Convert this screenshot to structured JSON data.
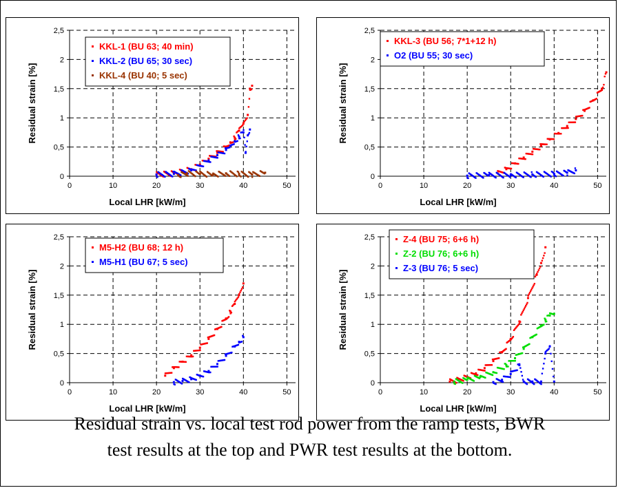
{
  "caption": {
    "line1": "Residual strain vs. local test rod power from the ramp tests, BWR",
    "line2": "test results at the top and PWR test results at the bottom."
  },
  "chart_data": [
    {
      "type": "scatter",
      "xlabel": "Local LHR [kW/m]",
      "ylabel": "Residual strain [%]",
      "xlim": [
        0,
        52
      ],
      "ylim": [
        0,
        2.5
      ],
      "xticks": [
        "0",
        "10",
        "20",
        "30",
        "40",
        "50"
      ],
      "yticks": [
        "0",
        "0,5",
        "1",
        "1,5",
        "2",
        "2,5"
      ],
      "grid": true,
      "legend": "top-left",
      "series": [
        {
          "name": "KKL-1 (BU 63; 40 min)",
          "color": "#ff0000",
          "x": [
            20,
            24,
            28,
            30,
            32,
            34,
            36,
            37,
            38,
            39,
            40,
            41,
            41.5,
            42
          ],
          "y": [
            0.03,
            0.05,
            0.12,
            0.2,
            0.3,
            0.4,
            0.5,
            0.58,
            0.66,
            0.78,
            0.9,
            1.05,
            1.5,
            1.55
          ]
        },
        {
          "name": "KKL-2 (BU 65; 30 sec)",
          "color": "#0000ff",
          "x": [
            20,
            24,
            28,
            30,
            32,
            34,
            36,
            37,
            38,
            39,
            40,
            40.5,
            41,
            41.5
          ],
          "y": [
            0.03,
            0.04,
            0.1,
            0.18,
            0.27,
            0.36,
            0.45,
            0.52,
            0.6,
            0.68,
            0.75,
            0.4,
            0.7,
            0.8
          ]
        },
        {
          "name": "KKL-4 (BU 40; 5 sec)",
          "color": "#993300",
          "x": [
            25,
            27,
            30,
            33,
            36,
            39,
            42,
            45
          ],
          "y": [
            0.02,
            0.05,
            0.04,
            0.03,
            0.05,
            0.04,
            0.03,
            0.06
          ]
        }
      ]
    },
    {
      "type": "scatter",
      "xlabel": "Local LHR [kW/m]",
      "ylabel": "Residual strain [%]",
      "xlim": [
        0,
        52
      ],
      "ylim": [
        0,
        2.5
      ],
      "xticks": [
        "0",
        "10",
        "20",
        "30",
        "40",
        "50"
      ],
      "yticks": [
        "0",
        "0,5",
        "1",
        "1,5",
        "2",
        "2,5"
      ],
      "grid": true,
      "legend": "top-left",
      "series": [
        {
          "name": "KKL-3 (BU 56; 7*1+12 h)",
          "color": "#ff0000",
          "x": [
            27,
            29,
            31,
            33,
            35,
            37,
            39,
            41,
            43,
            45,
            47,
            49,
            51,
            52
          ],
          "y": [
            0.05,
            0.12,
            0.22,
            0.32,
            0.42,
            0.52,
            0.63,
            0.74,
            0.86,
            0.98,
            1.12,
            1.3,
            1.5,
            1.78
          ]
        },
        {
          "name": "O2 (BU 55; 30 sec)",
          "color": "#0000ff",
          "x": [
            20,
            25,
            30,
            35,
            40,
            43,
            45
          ],
          "y": [
            0.01,
            0.02,
            0.02,
            0.03,
            0.04,
            0.06,
            0.1
          ]
        }
      ]
    },
    {
      "type": "scatter",
      "xlabel": "Local LHR [kW/m]",
      "ylabel": "Residual strain [%]",
      "xlim": [
        0,
        52
      ],
      "ylim": [
        0,
        2.5
      ],
      "xticks": [
        "0",
        "10",
        "20",
        "30",
        "40",
        "50"
      ],
      "yticks": [
        "0",
        "0,5",
        "1",
        "1,5",
        "2",
        "2,5"
      ],
      "grid": true,
      "legend": "top-left",
      "series": [
        {
          "name": "M5-H2 (BU 68; 12 h)",
          "color": "#ff0000",
          "x": [
            22,
            24,
            26,
            28,
            30,
            32,
            34,
            36,
            37,
            38,
            39,
            40
          ],
          "y": [
            0.12,
            0.25,
            0.36,
            0.47,
            0.6,
            0.75,
            0.92,
            1.1,
            1.22,
            1.35,
            1.5,
            1.7
          ]
        },
        {
          "name": "M5-H1 (BU 67; 5 sec)",
          "color": "#0000ff",
          "x": [
            24,
            26,
            28,
            30,
            32,
            34,
            36,
            38,
            39,
            40
          ],
          "y": [
            0.01,
            0.03,
            0.06,
            0.12,
            0.2,
            0.32,
            0.46,
            0.62,
            0.7,
            0.78
          ]
        }
      ]
    },
    {
      "type": "scatter",
      "xlabel": "Local LHR [kW/m]",
      "ylabel": "Residual strain [%]",
      "xlim": [
        0,
        52
      ],
      "ylim": [
        0,
        2.5
      ],
      "xticks": [
        "0",
        "10",
        "20",
        "30",
        "40",
        "50"
      ],
      "yticks": [
        "0",
        "0,5",
        "1",
        "1,5",
        "2",
        "2,5"
      ],
      "grid": true,
      "legend": "top-left",
      "series": [
        {
          "name": "Z-4 (BU 75; 6+6 h)",
          "color": "#ff0000",
          "x": [
            16,
            18,
            20,
            22,
            24,
            26,
            28,
            30,
            32,
            34,
            36,
            37,
            38
          ],
          "y": [
            0.02,
            0.05,
            0.1,
            0.16,
            0.25,
            0.37,
            0.52,
            0.75,
            1.05,
            1.45,
            1.85,
            2.05,
            2.32
          ]
        },
        {
          "name": "Z-2  (BU 76; 6+6 h)",
          "color": "#00dd00",
          "x": [
            17,
            20,
            23,
            26,
            29,
            31,
            33,
            35,
            37,
            38,
            39,
            40
          ],
          "y": [
            0.02,
            0.05,
            0.1,
            0.18,
            0.3,
            0.42,
            0.58,
            0.78,
            0.98,
            1.08,
            1.15,
            1.18
          ]
        },
        {
          "name": "Z-3 (BU 76; 5 sec)",
          "color": "#0000ff",
          "x": [
            26,
            28,
            30,
            32,
            33,
            35,
            37,
            38,
            39,
            40
          ],
          "y": [
            0.01,
            0.05,
            0.15,
            0.3,
            0.02,
            0.02,
            0.02,
            0.5,
            0.62,
            0.02
          ]
        }
      ]
    }
  ]
}
